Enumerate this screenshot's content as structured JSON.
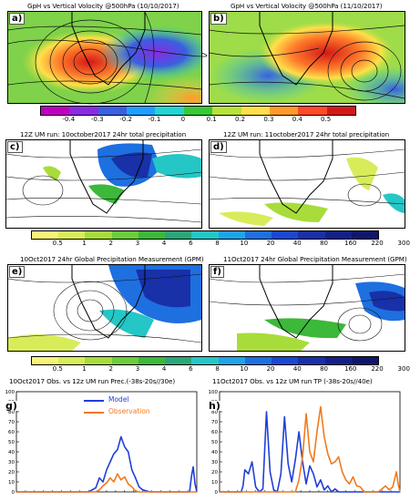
{
  "panels": {
    "a": {
      "letter": "a)",
      "title": "GpH vs Vertical Volocity @500hPa (10/10/2017)"
    },
    "b": {
      "letter": "b)",
      "title": "GpH vs Vertical Volocity @500hPa (11/10/2017)"
    },
    "c": {
      "letter": "c)",
      "title": "12Z UM run: 10october2017 24hr total precipitation"
    },
    "d": {
      "letter": "d)",
      "title": "12Z UM run: 11october2017 24hr total precipitation"
    },
    "e": {
      "letter": "e)",
      "title": "10Oct2017 24hr Global Precipitation Measurement (GPM)"
    },
    "f": {
      "letter": "f)",
      "title": "11Oct2017 24hr Global Precipitation Measurement (GPM)"
    },
    "g": {
      "letter": "g)",
      "title": "10Oct2017 Obs. vs 12z UM run Prec.(-38s-20s//30e)"
    },
    "h": {
      "letter": "h)",
      "title": "11Oct2017 Obs. vs 12z UM run TP (-38s-20s//40e)"
    }
  },
  "colorbar_velocity": {
    "labels": [
      "-0.4",
      "-0.3",
      "-0.2",
      "-0.1",
      "0",
      "0.1",
      "0.2",
      "0.3",
      "0.4",
      "0.5"
    ],
    "colors": [
      "#c000c0",
      "#8a2be2",
      "#3a5fe0",
      "#1fa0ff",
      "#22d4d4",
      "#37c837",
      "#b6e23a",
      "#ffe04a",
      "#ff9a2a",
      "#ff4a2a",
      "#d41818"
    ]
  },
  "colorbar_precip_um": {
    "labels": [
      "0.5",
      "1",
      "2",
      "3",
      "4",
      "6",
      "8",
      "10",
      "20",
      "40",
      "80",
      "160",
      "220",
      "300"
    ],
    "colors": [
      "#f6f27a",
      "#d8ec5a",
      "#a8dc3a",
      "#6ccc3a",
      "#3cb83a",
      "#28a878",
      "#25c6c6",
      "#1ea4e8",
      "#1e6fe0",
      "#1a48d0",
      "#1830a8",
      "#14208a",
      "#10166e"
    ]
  },
  "colorbar_precip_gpm": {
    "labels": [
      "0.5",
      "1",
      "2",
      "3",
      "4",
      "6",
      "8",
      "10",
      "20",
      "40",
      "80",
      "160",
      "220",
      "300"
    ],
    "colors": [
      "#f6f27a",
      "#d8ec5a",
      "#a8dc3a",
      "#6ccc3a",
      "#3cb83a",
      "#28a878",
      "#25c6c6",
      "#1ea4e8",
      "#1e6fe0",
      "#1a48d0",
      "#1830a8",
      "#14208a",
      "#10166e"
    ]
  },
  "chart_data": [
    {
      "panel": "g",
      "type": "line",
      "title": "10Oct2017 Obs. vs 12z UM run Prec.(-38s-20s//30e)",
      "ylim": [
        0,
        100
      ],
      "yticks": [
        "0",
        "10",
        "20",
        "30",
        "40",
        "50",
        "60",
        "70",
        "80",
        "90",
        "100"
      ],
      "xlim": [
        0,
        100
      ],
      "legend_position": "top-center",
      "series": [
        {
          "name": "Model",
          "color": "#1f3fd8",
          "x": [
            0,
            40,
            44,
            46,
            48,
            50,
            52,
            54,
            56,
            58,
            60,
            62,
            64,
            66,
            68,
            70,
            72,
            74,
            96,
            97,
            98,
            99,
            100
          ],
          "values": [
            0,
            0,
            4,
            14,
            10,
            22,
            30,
            38,
            42,
            55,
            45,
            40,
            22,
            14,
            5,
            2,
            1,
            0,
            0,
            15,
            25,
            8,
            0
          ]
        },
        {
          "name": "Observation",
          "color": "#f07a1e",
          "x": [
            0,
            44,
            46,
            48,
            50,
            52,
            54,
            56,
            58,
            60,
            62,
            64,
            66,
            68,
            100
          ],
          "values": [
            0,
            0,
            2,
            6,
            9,
            14,
            10,
            18,
            12,
            15,
            8,
            5,
            1,
            0,
            0
          ]
        }
      ]
    },
    {
      "panel": "h",
      "type": "line",
      "title": "11Oct2017 Obs. vs 12z UM run TP (-38s-20s//40e)",
      "ylim": [
        0,
        100
      ],
      "yticks": [
        "0",
        "10",
        "20",
        "30",
        "40",
        "50",
        "60",
        "70",
        "80",
        "90",
        "100"
      ],
      "xlim": [
        0,
        100
      ],
      "series": [
        {
          "name": "Model",
          "color": "#1f3fd8",
          "x": [
            0,
            12,
            13,
            14,
            16,
            18,
            20,
            22,
            24,
            26,
            28,
            30,
            32,
            34,
            36,
            38,
            40,
            42,
            44,
            46,
            48,
            50,
            52,
            54,
            56,
            58,
            60,
            62,
            64,
            66,
            100
          ],
          "values": [
            0,
            0,
            6,
            22,
            18,
            30,
            5,
            0,
            3,
            80,
            20,
            2,
            0,
            18,
            75,
            28,
            10,
            32,
            60,
            30,
            8,
            26,
            18,
            5,
            12,
            2,
            6,
            0,
            3,
            0,
            0
          ]
        },
        {
          "name": "Observation",
          "color": "#f07a1e",
          "x": [
            0,
            42,
            44,
            46,
            48,
            50,
            52,
            54,
            56,
            58,
            60,
            62,
            64,
            66,
            68,
            70,
            72,
            74,
            76,
            78,
            80,
            84,
            88,
            90,
            92,
            94,
            96,
            98,
            99,
            100
          ],
          "values": [
            0,
            0,
            12,
            35,
            78,
            40,
            30,
            60,
            85,
            55,
            38,
            28,
            30,
            35,
            20,
            12,
            8,
            15,
            6,
            5,
            0,
            0,
            0,
            3,
            6,
            2,
            5,
            20,
            8,
            0
          ]
        }
      ]
    }
  ]
}
